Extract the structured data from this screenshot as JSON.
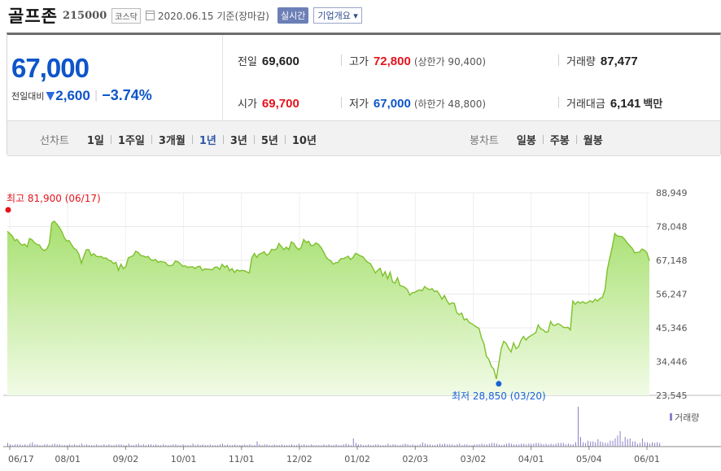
{
  "header": {
    "company_name": "골프존",
    "stock_code": "215000",
    "market": "코스닥",
    "date_text": "2020.06.15  기준(장마감)",
    "realtime_label": "실시간",
    "company_info_label": "기업개요 ▾"
  },
  "price": {
    "current": "67,000",
    "change_label": "전일대비",
    "change_arrow": "▼",
    "change_amount": "2,600",
    "change_percent": "−3.74%",
    "colors": {
      "down": "#0d55c9",
      "up": "#e4141c"
    }
  },
  "stats": {
    "prev_close_label": "전일",
    "prev_close": "69,600",
    "high_label": "고가",
    "high": "72,800",
    "upper_limit": "(상한가 90,400)",
    "volume_label": "거래량",
    "volume": "87,477",
    "open_label": "시가",
    "open": "69,700",
    "low_label": "저가",
    "low": "67,000",
    "lower_limit": "(하한가 48,800)",
    "amount_label": "거래대금",
    "amount": "6,141",
    "amount_unit": "백만"
  },
  "tabs": {
    "line_title": "선차트",
    "line_tabs": [
      "1일",
      "1주일",
      "3개월",
      "1년",
      "3년",
      "5년",
      "10년"
    ],
    "line_active": "1년",
    "candle_title": "봉차트",
    "candle_tabs": [
      "일봉",
      "주봉",
      "월봉"
    ]
  },
  "chart_data": {
    "type": "area",
    "title": "",
    "x_tick_labels": [
      "06/17",
      "08/01",
      "09/02",
      "10/01",
      "11/01",
      "12/02",
      "01/02",
      "02/03",
      "03/02",
      "04/01",
      "05/04",
      "06/01"
    ],
    "y_tick_labels": [
      "88,949",
      "78,048",
      "67,148",
      "56,247",
      "45,346",
      "34,446",
      "23,545"
    ],
    "ylim": [
      23545,
      88949
    ],
    "grid": true,
    "colors": {
      "line": "#7fc02b",
      "fill_top": "#a7e070",
      "fill_bottom": "#f1fbe6",
      "max_marker": "#e4141c",
      "min_marker": "#1a63d6",
      "volume": "#8b80c8"
    },
    "max_annotation": "최고 81,900 (06/17)",
    "min_annotation": "최저 28,850 (03/20)",
    "volume_legend": "거래량",
    "price_series": [
      76500,
      75800,
      75000,
      73500,
      73900,
      72700,
      72000,
      72400,
      71500,
      74200,
      73800,
      72800,
      72300,
      72100,
      70800,
      70300,
      70800,
      72600,
      79200,
      79800,
      78900,
      77900,
      76500,
      74600,
      73400,
      73500,
      72200,
      71000,
      70500,
      69100,
      66200,
      68600,
      70600,
      70600,
      68700,
      69300,
      68500,
      68300,
      68400,
      67800,
      67900,
      67200,
      66900,
      66100,
      66500,
      63900,
      65900,
      64500,
      65200,
      68000,
      68300,
      68700,
      70100,
      69700,
      68700,
      68600,
      68200,
      68400,
      67400,
      67100,
      67400,
      66500,
      66800,
      66600,
      66500,
      65500,
      65400,
      65600,
      66900,
      66700,
      66100,
      65200,
      65400,
      64900,
      65000,
      65100,
      64500,
      65100,
      65200,
      63900,
      64400,
      64300,
      64200,
      64100,
      64900,
      65000,
      64200,
      65900,
      64900,
      65500,
      63800,
      64500,
      63200,
      64100,
      63700,
      63900,
      63800,
      63400,
      63100,
      67900,
      69400,
      68100,
      69200,
      69400,
      69900,
      68800,
      69300,
      70700,
      70500,
      70800,
      72600,
      71600,
      70600,
      71400,
      70600,
      73100,
      72600,
      71300,
      70600,
      71300,
      73900,
      72900,
      73300,
      71900,
      72000,
      72800,
      72300,
      71300,
      70000,
      68300,
      67400,
      67000,
      65900,
      66400,
      66500,
      67700,
      67700,
      68000,
      68500,
      67400,
      68100,
      69400,
      69000,
      68600,
      68300,
      67200,
      66500,
      66100,
      64700,
      63100,
      63900,
      64600,
      62100,
      63500,
      61200,
      63300,
      60200,
      59800,
      61500,
      59000,
      58800,
      58400,
      57700,
      55900,
      56700,
      56800,
      57300,
      57600,
      57300,
      58700,
      58000,
      57700,
      58000,
      57000,
      57300,
      56100,
      54600,
      55800,
      54100,
      52900,
      53400,
      53300,
      50200,
      49600,
      50100,
      47900,
      48300,
      47100,
      46700,
      46200,
      45600,
      45200,
      42200,
      40200,
      36200,
      35100,
      32900,
      32000,
      28850,
      33700,
      38600,
      41000,
      40300,
      38700,
      37600,
      40500,
      38600,
      39200,
      41300,
      42600,
      41400,
      42300,
      42800,
      43300,
      43800,
      46300,
      45000,
      44700,
      43900,
      44100,
      47400,
      46200,
      46200,
      46700,
      46300,
      45600,
      45400,
      45500,
      44700,
      54000,
      52900,
      53800,
      53300,
      53800,
      53300,
      53500,
      54100,
      53600,
      54600,
      54000,
      54800,
      55200,
      57600,
      64300,
      68000,
      71700,
      75800,
      75000,
      74900,
      74800,
      73900,
      72800,
      71900,
      71100,
      69600,
      69700,
      69800,
      70800,
      70400,
      69600,
      67000
    ],
    "volume_series": [
      5,
      3,
      2,
      3,
      3,
      3,
      2,
      3,
      2,
      4,
      6,
      3,
      3,
      2,
      2,
      3,
      3,
      2,
      3,
      4,
      3,
      3,
      2,
      2,
      2,
      3,
      2,
      3,
      2,
      2,
      4,
      2,
      3,
      2,
      2,
      2,
      3,
      2,
      2,
      3,
      2,
      3,
      2,
      2,
      3,
      3,
      3,
      2,
      2,
      4,
      2,
      2,
      3,
      4,
      2,
      3,
      2,
      3,
      3,
      2,
      3,
      2,
      2,
      3,
      2,
      2,
      2,
      3,
      3,
      2,
      2,
      3,
      2,
      2,
      2,
      4,
      2,
      3,
      2,
      3,
      2,
      2,
      3,
      2,
      2,
      2,
      3,
      4,
      2,
      3,
      2,
      2,
      3,
      2,
      2,
      2,
      3,
      2,
      3,
      2,
      2,
      7,
      3,
      2,
      3,
      3,
      2,
      2,
      3,
      2,
      2,
      3,
      2,
      2,
      2,
      3,
      2,
      2,
      4,
      2,
      3,
      2,
      2,
      3,
      2,
      2,
      2,
      2,
      3,
      2,
      3,
      2,
      2,
      3,
      2,
      2,
      3,
      4,
      3,
      2,
      11,
      5,
      3,
      3,
      2,
      2,
      3,
      2,
      2,
      3,
      3,
      2,
      2,
      2,
      4,
      2,
      3,
      3,
      2,
      2,
      3,
      4,
      3,
      2,
      3,
      2,
      2,
      3,
      6,
      4,
      3,
      3,
      2,
      2,
      3,
      4,
      3,
      4,
      3,
      3,
      3,
      2,
      3,
      4,
      2,
      3,
      3,
      2,
      2,
      3,
      3,
      3,
      4,
      3,
      3,
      4,
      5,
      5,
      4,
      3,
      2,
      3,
      4,
      5,
      4,
      3,
      3,
      3,
      4,
      4,
      3,
      4,
      4,
      4,
      5,
      5,
      4,
      3,
      4,
      3,
      4,
      3,
      4,
      5,
      5,
      5,
      3,
      4,
      3,
      3,
      6,
      54,
      13,
      6,
      5,
      8,
      7,
      7,
      6,
      10,
      7,
      6,
      5,
      5,
      8,
      8,
      11,
      15,
      21,
      7,
      13,
      10,
      11,
      7,
      7,
      4,
      5,
      11,
      6,
      6,
      4,
      6,
      5,
      6,
      5
    ]
  }
}
